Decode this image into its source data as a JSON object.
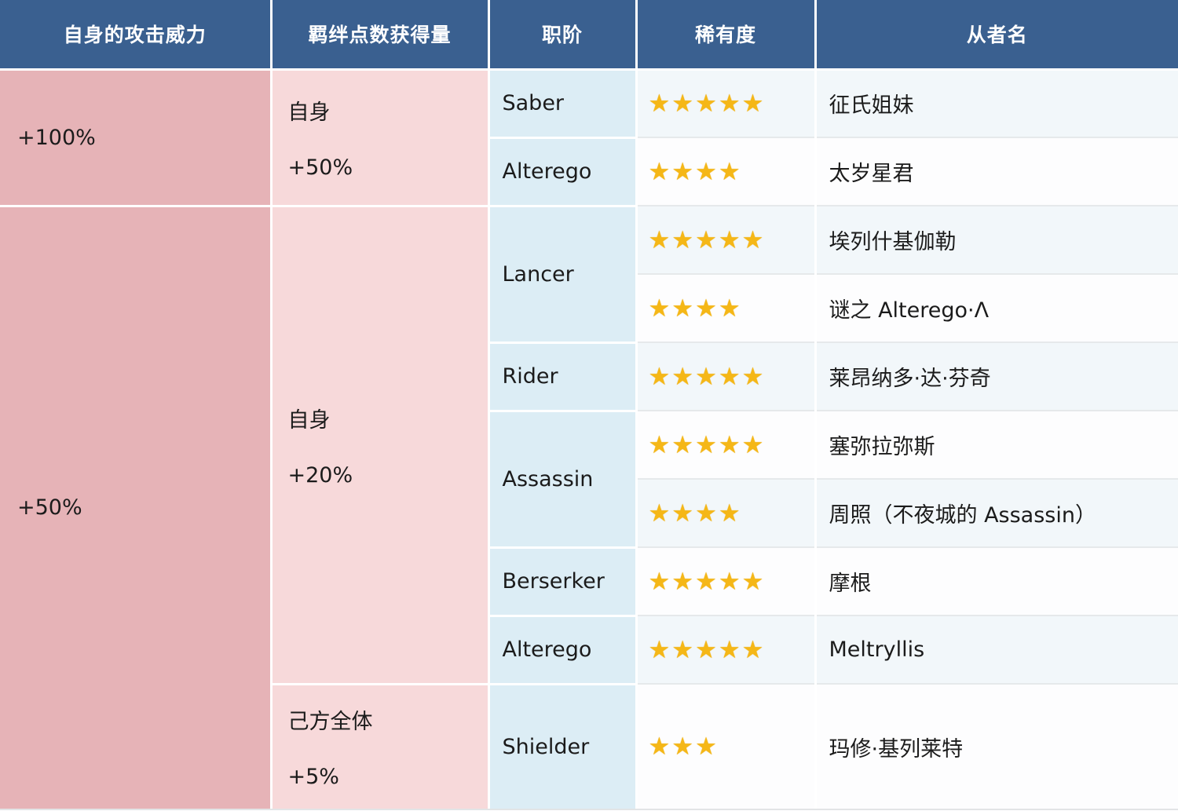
{
  "table": {
    "headers": {
      "attack_power": "自身的攻击威力",
      "bond_gain": "羁绊点数获得量",
      "class": "职阶",
      "rarity": "稀有度",
      "servant_name": "从者名"
    },
    "power_groups": [
      {
        "label": "+100%"
      },
      {
        "label": "+50%"
      }
    ],
    "bond_groups": [
      {
        "target": "自身",
        "amount": "+50%"
      },
      {
        "target": "自身",
        "amount": "+20%"
      },
      {
        "target": "己方全体",
        "amount": "+5%"
      }
    ],
    "rows": [
      {
        "class_name": "Saber",
        "rarity": 5,
        "stars": "★★★★★",
        "servant": "征氏姐妹"
      },
      {
        "class_name": "Alterego",
        "rarity": 4,
        "stars": "★★★★",
        "servant": "太岁星君"
      },
      {
        "class_name": "Lancer",
        "rarity": 5,
        "stars": "★★★★★",
        "servant": "埃列什基伽勒"
      },
      {
        "class_name": "Lancer",
        "rarity": 4,
        "stars": "★★★★",
        "servant": "谜之 Alterego·Λ"
      },
      {
        "class_name": "Rider",
        "rarity": 5,
        "stars": "★★★★★",
        "servant": "莱昂纳多·达·芬奇"
      },
      {
        "class_name": "Assassin",
        "rarity": 5,
        "stars": "★★★★★",
        "servant": "塞弥拉弥斯"
      },
      {
        "class_name": "Assassin",
        "rarity": 4,
        "stars": "★★★★",
        "servant": "周照（不夜城的 Assassin）"
      },
      {
        "class_name": "Berserker",
        "rarity": 5,
        "stars": "★★★★★",
        "servant": "摩根"
      },
      {
        "class_name": "Alterego",
        "rarity": 5,
        "stars": "★★★★★",
        "servant": "Meltryllis"
      },
      {
        "class_name": "Shielder",
        "rarity": 3,
        "stars": "★★★",
        "servant": "玛修·基列莱特"
      }
    ],
    "colors": {
      "header_bg": "#3a6090",
      "power_col_bg": "#e6b3b7",
      "bond_col_bg": "#f7d9da",
      "class_col_bg": "#dcedf5",
      "row_tint": "#f2f7fa",
      "star": "#f5b717"
    }
  }
}
